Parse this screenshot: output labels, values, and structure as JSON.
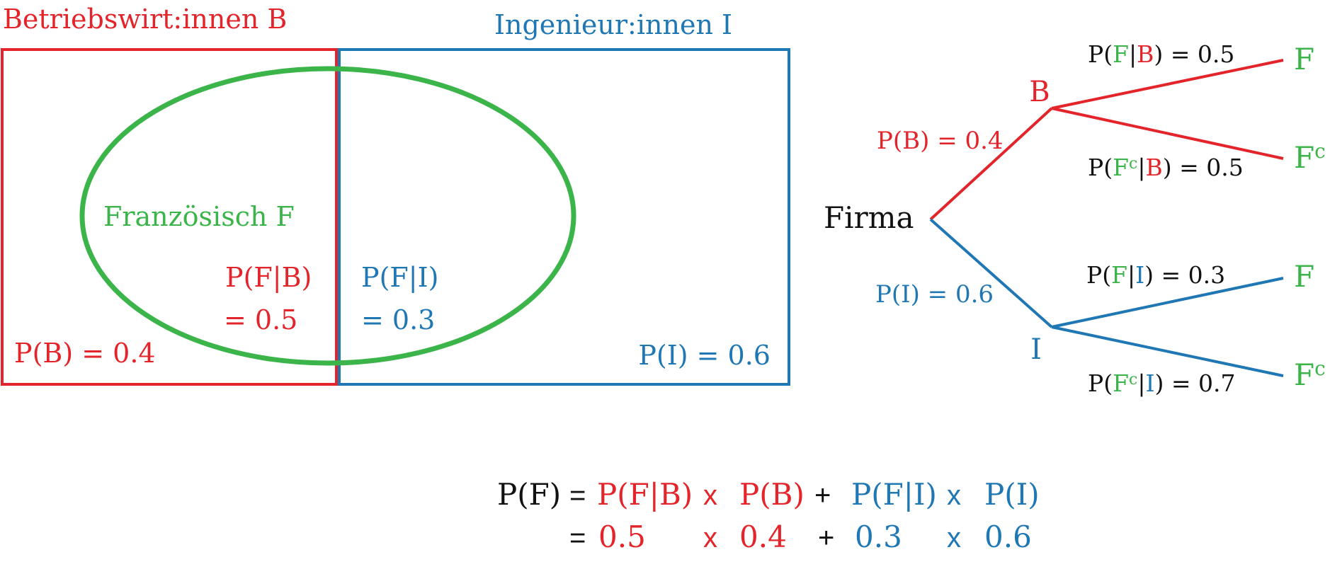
{
  "colors": {
    "red": "#e3242b",
    "blue": "#1f77b4",
    "green": "#3bb54a",
    "black": "#111111"
  },
  "venn": {
    "set_b_label": "Betriebswirt:innen B",
    "set_i_label": "Ingenieur:innen I",
    "set_f_label": "Französisch F",
    "p_f_given_b_line1": "P(F|B)",
    "p_f_given_b_line2": "= 0.5",
    "p_f_given_i_line1": "P(F|I)",
    "p_f_given_i_line2": "= 0.3",
    "p_b": "P(B) = 0.4",
    "p_i": "P(I) = 0.6"
  },
  "tree": {
    "root": "Firma",
    "node_b": "B",
    "node_i": "I",
    "edge_b_label": "P(B) = 0.4",
    "edge_i_label": "P(I) = 0.6",
    "leaf_f": "F",
    "leaf_fc_base": "F",
    "complement_mark": "c",
    "prob_open": "P(",
    "prob_bar": "|",
    "eq_b_f": ") = 0.5",
    "eq_b_fc": ") = 0.5",
    "eq_i_f": ") = 0.3",
    "eq_i_fc": ") = 0.7"
  },
  "formula": {
    "lhs": "P(F)",
    "eq": "=",
    "t1": "P(F|B)",
    "t2": "P(B)",
    "t3": "P(F|I)",
    "t4": "P(I)",
    "times": "x",
    "plus": "+",
    "v1": "0.5",
    "v2": "0.4",
    "v3": "0.3",
    "v4": "0.6"
  }
}
